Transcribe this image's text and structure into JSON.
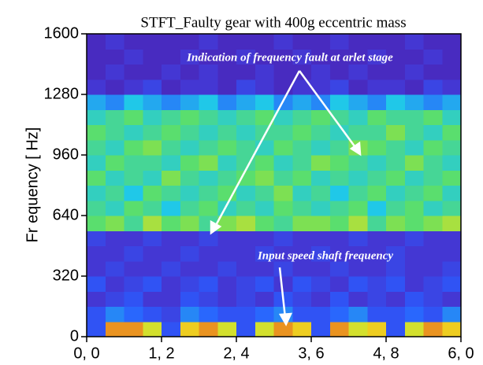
{
  "chart_data": {
    "type": "heatmap",
    "title": "STFT_Faulty gear with 400g eccentric mass",
    "ylabel": "Fr equency  [ Hz]",
    "xlim": [
      0,
      6
    ],
    "ylim": [
      0,
      1600
    ],
    "xticks": [
      {
        "value": 0,
        "label": "0, 0"
      },
      {
        "value": 1.2,
        "label": "1, 2"
      },
      {
        "value": 2.4,
        "label": "2, 4"
      },
      {
        "value": 3.6,
        "label": "3, 6"
      },
      {
        "value": 4.8,
        "label": "4, 8"
      },
      {
        "value": 6,
        "label": "6, 0"
      }
    ],
    "yticks": [
      0,
      320,
      640,
      960,
      1280,
      1600
    ],
    "zlim": [
      0,
      1
    ],
    "colormap": [
      "#3a0f78",
      "#4a2ec8",
      "#2a5cff",
      "#20c8e8",
      "#60e060",
      "#f0e020",
      "#e02020"
    ],
    "z": [
      [
        0.3,
        0.9,
        0.9,
        0.8,
        0.3,
        0.85,
        0.9,
        0.8,
        0.3,
        0.8,
        0.9,
        0.85,
        0.3,
        0.9,
        0.8,
        0.85,
        0.3,
        0.8,
        0.9,
        0.85
      ],
      [
        0.3,
        0.4,
        0.35,
        0.3,
        0.25,
        0.4,
        0.35,
        0.3,
        0.3,
        0.35,
        0.4,
        0.3,
        0.3,
        0.35,
        0.4,
        0.3,
        0.3,
        0.35,
        0.3,
        0.4
      ],
      [
        0.2,
        0.25,
        0.3,
        0.2,
        0.2,
        0.3,
        0.25,
        0.2,
        0.25,
        0.2,
        0.3,
        0.25,
        0.2,
        0.3,
        0.2,
        0.25,
        0.2,
        0.3,
        0.25,
        0.2
      ],
      [
        0.3,
        0.2,
        0.25,
        0.3,
        0.2,
        0.25,
        0.3,
        0.2,
        0.25,
        0.3,
        0.2,
        0.3,
        0.25,
        0.2,
        0.3,
        0.25,
        0.3,
        0.2,
        0.25,
        0.3
      ],
      [
        0.2,
        0.25,
        0.2,
        0.2,
        0.25,
        0.2,
        0.2,
        0.25,
        0.2,
        0.2,
        0.25,
        0.2,
        0.2,
        0.25,
        0.2,
        0.2,
        0.25,
        0.2,
        0.2,
        0.25
      ],
      [
        0.2,
        0.2,
        0.25,
        0.2,
        0.2,
        0.25,
        0.2,
        0.2,
        0.2,
        0.25,
        0.2,
        0.2,
        0.25,
        0.2,
        0.2,
        0.2,
        0.25,
        0.2,
        0.2,
        0.2
      ],
      [
        0.25,
        0.2,
        0.2,
        0.25,
        0.2,
        0.2,
        0.25,
        0.2,
        0.2,
        0.2,
        0.25,
        0.2,
        0.2,
        0.2,
        0.25,
        0.2,
        0.2,
        0.25,
        0.2,
        0.2
      ],
      [
        0.65,
        0.7,
        0.6,
        0.75,
        0.65,
        0.7,
        0.6,
        0.7,
        0.75,
        0.65,
        0.6,
        0.7,
        0.7,
        0.65,
        0.75,
        0.6,
        0.7,
        0.65,
        0.7,
        0.75
      ],
      [
        0.6,
        0.55,
        0.65,
        0.6,
        0.5,
        0.6,
        0.65,
        0.55,
        0.6,
        0.55,
        0.65,
        0.6,
        0.55,
        0.6,
        0.65,
        0.5,
        0.6,
        0.65,
        0.55,
        0.6
      ],
      [
        0.55,
        0.6,
        0.5,
        0.65,
        0.6,
        0.55,
        0.6,
        0.65,
        0.55,
        0.6,
        0.7,
        0.55,
        0.6,
        0.5,
        0.6,
        0.65,
        0.55,
        0.6,
        0.65,
        0.55
      ],
      [
        0.65,
        0.55,
        0.6,
        0.55,
        0.7,
        0.6,
        0.55,
        0.6,
        0.65,
        0.7,
        0.6,
        0.65,
        0.55,
        0.6,
        0.55,
        0.6,
        0.65,
        0.55,
        0.6,
        0.65
      ],
      [
        0.55,
        0.65,
        0.6,
        0.6,
        0.55,
        0.65,
        0.7,
        0.55,
        0.6,
        0.65,
        0.55,
        0.6,
        0.7,
        0.65,
        0.6,
        0.55,
        0.6,
        0.7,
        0.6,
        0.55
      ],
      [
        0.6,
        0.55,
        0.65,
        0.7,
        0.6,
        0.55,
        0.6,
        0.65,
        0.6,
        0.55,
        0.65,
        0.6,
        0.55,
        0.6,
        0.7,
        0.65,
        0.6,
        0.55,
        0.65,
        0.6
      ],
      [
        0.65,
        0.6,
        0.55,
        0.6,
        0.65,
        0.6,
        0.55,
        0.6,
        0.55,
        0.6,
        0.6,
        0.65,
        0.6,
        0.55,
        0.6,
        0.6,
        0.7,
        0.6,
        0.55,
        0.65
      ],
      [
        0.55,
        0.6,
        0.65,
        0.55,
        0.6,
        0.65,
        0.6,
        0.55,
        0.6,
        0.65,
        0.55,
        0.6,
        0.65,
        0.6,
        0.55,
        0.65,
        0.6,
        0.6,
        0.65,
        0.55
      ],
      [
        0.45,
        0.4,
        0.5,
        0.45,
        0.4,
        0.45,
        0.5,
        0.4,
        0.45,
        0.5,
        0.4,
        0.45,
        0.4,
        0.5,
        0.45,
        0.4,
        0.5,
        0.45,
        0.4,
        0.45
      ],
      [
        0.2,
        0.15,
        0.2,
        0.25,
        0.15,
        0.2,
        0.2,
        0.15,
        0.25,
        0.2,
        0.15,
        0.2,
        0.2,
        0.25,
        0.15,
        0.2,
        0.2,
        0.15,
        0.25,
        0.2
      ],
      [
        0.15,
        0.2,
        0.15,
        0.15,
        0.2,
        0.15,
        0.2,
        0.15,
        0.15,
        0.2,
        0.15,
        0.15,
        0.2,
        0.15,
        0.2,
        0.15,
        0.15,
        0.2,
        0.15,
        0.15
      ],
      [
        0.15,
        0.15,
        0.2,
        0.15,
        0.15,
        0.2,
        0.15,
        0.15,
        0.2,
        0.15,
        0.15,
        0.2,
        0.15,
        0.15,
        0.15,
        0.2,
        0.15,
        0.15,
        0.2,
        0.15
      ],
      [
        0.15,
        0.2,
        0.15,
        0.15,
        0.15,
        0.15,
        0.2,
        0.15,
        0.15,
        0.15,
        0.2,
        0.15,
        0.15,
        0.2,
        0.15,
        0.15,
        0.15,
        0.2,
        0.15,
        0.15
      ]
    ],
    "annotations": [
      "Indication of frequency fault at arlet stage",
      "Input speed shaft frequency"
    ]
  }
}
